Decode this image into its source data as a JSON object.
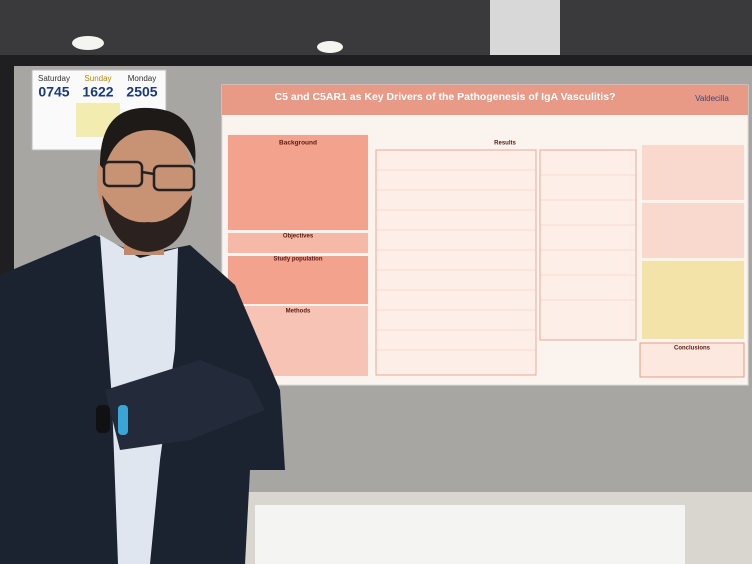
{
  "sign": {
    "days": [
      {
        "day": "Saturday",
        "count": "0745"
      },
      {
        "day": "Sunday",
        "count": "1622"
      },
      {
        "day": "Monday",
        "count": "2505"
      }
    ]
  },
  "poster": {
    "title": "C5 and C5AR1 as Key Drivers of the Pathogenesis of IgA Vasculitis?",
    "logo": "Valdecilla",
    "sections": {
      "background": "Background",
      "objectives": "Objectives",
      "study_population": "Study population",
      "methods": "Methods",
      "results": "Results",
      "conclusions": "Conclusions"
    }
  }
}
